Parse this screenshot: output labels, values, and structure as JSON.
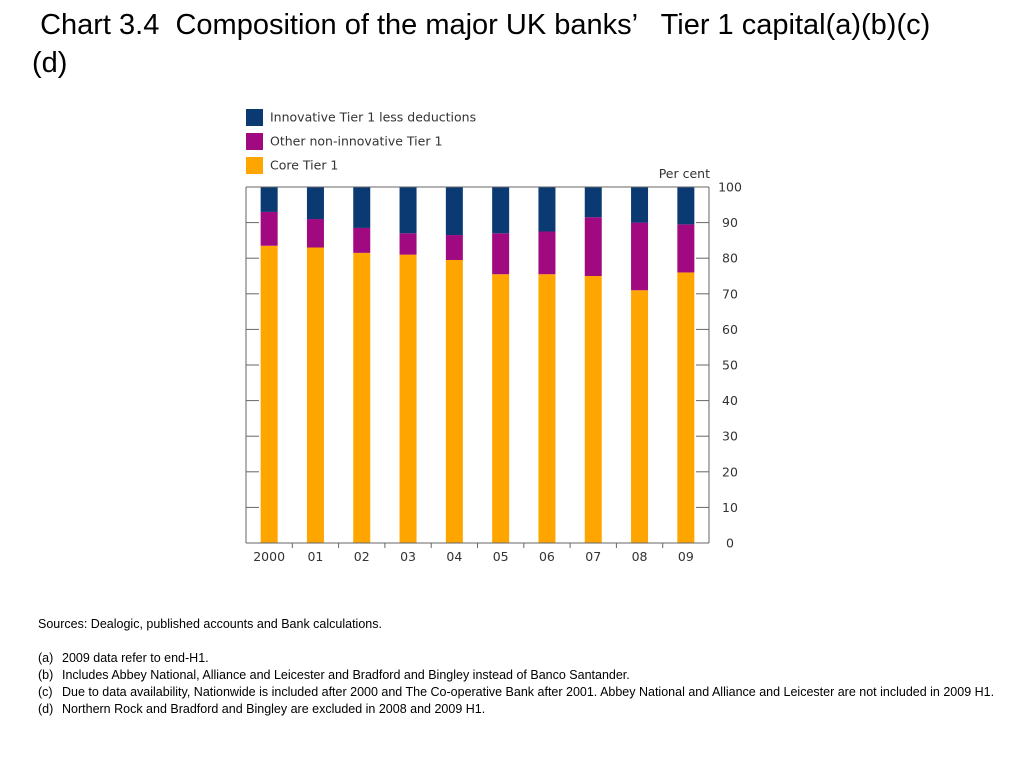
{
  "slide": {
    "title": " Chart 3.4  Composition of the major UK banks’   Tier 1 capital(a)(b)(c)(d)"
  },
  "colors": {
    "innovative": "#0b3a73",
    "other": "#a0097f",
    "core": "#ffa500",
    "axis": "#666666"
  },
  "chart_data": {
    "type": "bar",
    "stacked": true,
    "title": "",
    "xlabel": "",
    "ylabel": "Per cent",
    "ylim": [
      0,
      100
    ],
    "yticks": [
      0,
      10,
      20,
      30,
      40,
      50,
      60,
      70,
      80,
      90,
      100
    ],
    "y_axis_side": "right",
    "grid": false,
    "legend_position": "top-left",
    "categories": [
      "2000",
      "01",
      "02",
      "03",
      "04",
      "05",
      "06",
      "07",
      "08",
      "09"
    ],
    "series": [
      {
        "name": "Core Tier 1",
        "color_key": "core",
        "values": [
          83.5,
          83,
          81.5,
          81,
          79.5,
          75.5,
          75.5,
          75,
          71,
          76
        ]
      },
      {
        "name": "Other non-innovative Tier 1",
        "color_key": "other",
        "values": [
          9.5,
          8,
          7,
          6,
          7,
          11.5,
          12,
          16.5,
          19,
          13.5
        ]
      },
      {
        "name": "Innovative Tier 1 less deductions",
        "color_key": "innovative",
        "values": [
          7,
          9,
          11.5,
          13,
          13.5,
          13,
          12.5,
          8.5,
          10,
          10.5
        ]
      }
    ],
    "legend_order": [
      "Innovative Tier 1 less deductions",
      "Other non-innovative Tier 1",
      "Core Tier 1"
    ]
  },
  "notes": {
    "sources": "Sources:  Dealogic, published accounts and Bank calculations.",
    "items": [
      {
        "label": "(a)",
        "text": "2009 data refer to end-H1."
      },
      {
        "label": "(b)",
        "text": "Includes Abbey National, Alliance and Leicester and Bradford and Bingley instead of Banco Santander."
      },
      {
        "label": "(c)",
        "text": "Due to data availability, Nationwide is included after 2000 and The Co-operative Bank after 2001.  Abbey National and Alliance and Leicester are not included in 2009 H1."
      },
      {
        "label": "(d)",
        "text": "Northern Rock and Bradford and Bingley are excluded in 2008 and 2009 H1."
      }
    ]
  }
}
